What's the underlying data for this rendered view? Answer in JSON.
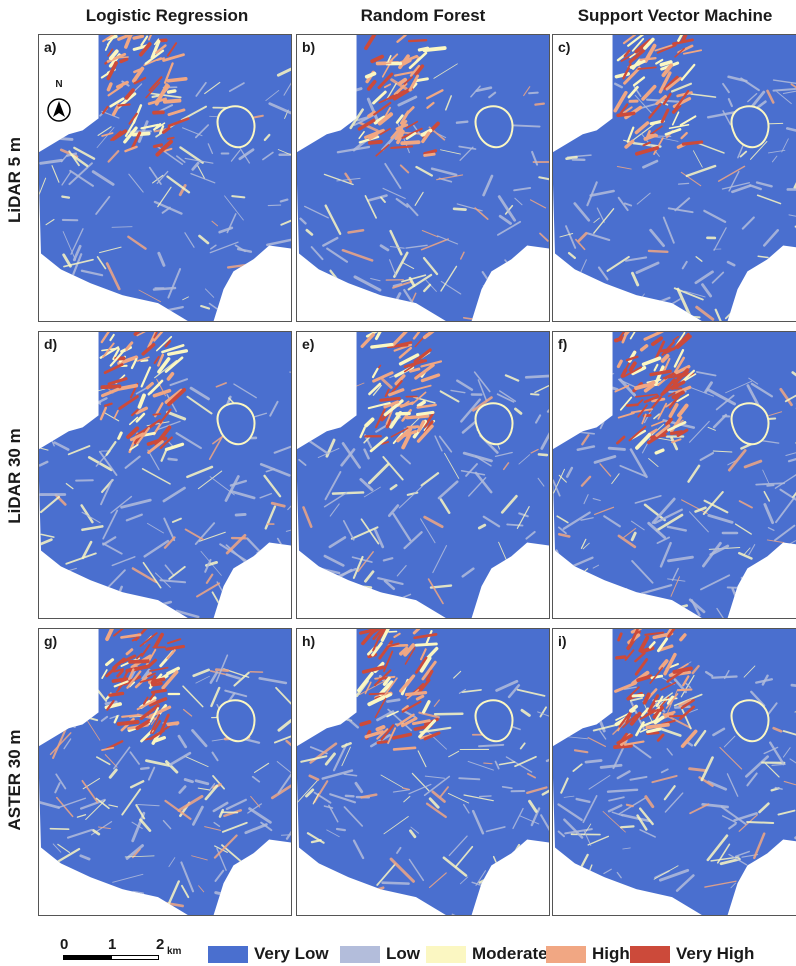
{
  "columns": [
    "Logistic Regression",
    "Random Forest",
    "Support Vector Machine"
  ],
  "rows": [
    "LiDAR 5 m",
    "LiDAR 30 m",
    "ASTER 30 m"
  ],
  "panels": [
    {
      "label": "a)",
      "row": 0,
      "col": 0,
      "hot": 0.55
    },
    {
      "label": "b)",
      "row": 0,
      "col": 1,
      "hot": 0.45
    },
    {
      "label": "c)",
      "row": 0,
      "col": 2,
      "hot": 0.5
    },
    {
      "label": "d)",
      "row": 1,
      "col": 0,
      "hot": 0.55
    },
    {
      "label": "e)",
      "row": 1,
      "col": 1,
      "hot": 0.5
    },
    {
      "label": "f)",
      "row": 1,
      "col": 2,
      "hot": 0.8
    },
    {
      "label": "g)",
      "row": 2,
      "col": 0,
      "hot": 0.75
    },
    {
      "label": "h)",
      "row": 2,
      "col": 1,
      "hot": 0.6
    },
    {
      "label": "i)",
      "row": 2,
      "col": 2,
      "hot": 0.7
    }
  ],
  "north_arrow": {
    "letter": "N"
  },
  "scale_bar": {
    "ticks": [
      "0",
      "1",
      "2"
    ],
    "unit": "km"
  },
  "legend": [
    {
      "label": "Very Low",
      "color": "#4a6fcf"
    },
    {
      "label": "Low",
      "color": "#b3bddb"
    },
    {
      "label": "Moderate",
      "color": "#fbf7c2"
    },
    {
      "label": "High",
      "color": "#f1a783"
    },
    {
      "label": "Very High",
      "color": "#cc4a3a"
    }
  ]
}
